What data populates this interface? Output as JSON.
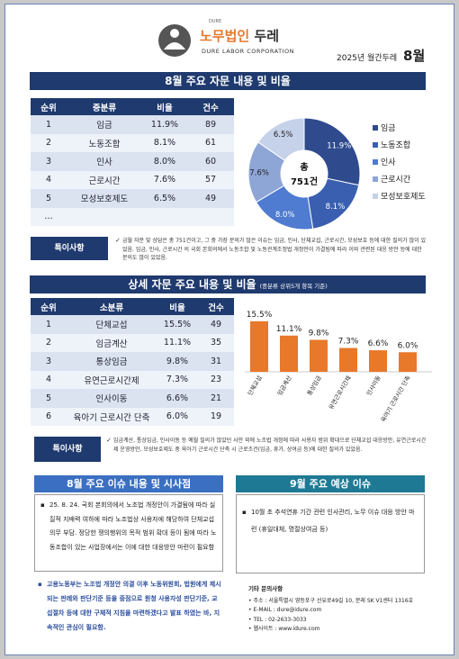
{
  "header": {
    "logo_small": "DURE",
    "logo_name": "노무법인",
    "logo_name_bold": "두레",
    "logo_sub": "DURE LABOR CORPORATION",
    "issue_label": "2025년 월간두레",
    "issue_month": "8월"
  },
  "section1": {
    "title": "8월 주요 자문 내용 및 비율",
    "columns": [
      "순위",
      "중분류",
      "비율",
      "건수"
    ],
    "rows": [
      {
        "rank": "1",
        "category": "임금",
        "ratio": "11.9%",
        "count": "89"
      },
      {
        "rank": "2",
        "category": "노동조합",
        "ratio": "8.1%",
        "count": "61"
      },
      {
        "rank": "3",
        "category": "인사",
        "ratio": "8.0%",
        "count": "60"
      },
      {
        "rank": "4",
        "category": "근로시간",
        "ratio": "7.6%",
        "count": "57"
      },
      {
        "rank": "5",
        "category": "모성보호제도",
        "ratio": "6.5%",
        "count": "49"
      }
    ],
    "ellipsis": "…",
    "donut_center_top": "총",
    "donut_center_bottom": "751건",
    "note_label": "특이사항",
    "note_text": "금월 자문 및 상담은 총 751건이고, 그 중 가장 문의가 많은 이슈는 임금, 인사, 단체교섭, 근로시간, 모성보호 등에 대한 질의가 많이 있었음. 임금, 인사, 근로시간 의 국회 본회의에서 노동조합 및 노동관계조정법 개정안이 가결됨에 따라 이와 관련된 대응 방안 등에 대한 문의도 많이 있었음."
  },
  "section2": {
    "title": "상세 자문 주요 내용 및 비율",
    "title_sub": "(중분류 상위5개 항목 기준)",
    "columns": [
      "순위",
      "소분류",
      "비율",
      "건수"
    ],
    "rows": [
      {
        "rank": "1",
        "category": "단체교섭",
        "ratio": "15.5%",
        "count": "49"
      },
      {
        "rank": "2",
        "category": "임금계산",
        "ratio": "11.1%",
        "count": "35"
      },
      {
        "rank": "3",
        "category": "통상임금",
        "ratio": "9.8%",
        "count": "31"
      },
      {
        "rank": "4",
        "category": "유연근로시간제",
        "ratio": "7.3%",
        "count": "23"
      },
      {
        "rank": "5",
        "category": "인사이동",
        "ratio": "6.6%",
        "count": "21"
      },
      {
        "rank": "6",
        "category": "육아기 근로시간 단축",
        "ratio": "6.0%",
        "count": "19"
      }
    ],
    "note_label": "특이사항",
    "note_text": "임금계산, 통상임금, 인사이동 등 예월 질의가 많았던 사안 외에 노조법 개정에 따라 사용자 범위 확대으로 단체교섭 대응방안, 유연근로시간제 운영방안, 모성보호제도 중 육아기 근로시간 단축 시 근로조건(임금, 휴가, 상여금 등)에 대한 질의가 있었음."
  },
  "issues": {
    "title": "8월 주요 이슈 내용 및 시사점",
    "bullet": "25. 8. 24. 국회 본회의에서 노조법 개정안이 가결됨에 따라 실질적 지배력 여하에 따라 노조법상 사용자에 해당하여 단체교섭 의무 부담. 정당한 쟁의행위의 목적 범위 확대 등이 됨에 따라 노동조합이 있는 사업장에서는 이에 대한 대응방안 마련이 필요함",
    "bullet2": "고용노동부는 노조법 개정안 의결 이후 노동위원회, 법원에게 제시되는 판례와 판단기준 등을 중점으로 원청 사용자성 판단기준, 교섭절차 등에 대한 구체적 지침을 마련하겠다고 발표 하였는 바, 지속적인 관심이 필요함."
  },
  "forecast": {
    "title": "9월 주요 예상 이슈",
    "bullet": "10월 초 추석연휴 기간 관련 인사관리, 노무 이슈 대응 방안 마련 (휴일대체, 명절상여금 등)"
  },
  "contact": {
    "title": "기타 문의사항",
    "items": [
      "주소 : 서울특별시 영등포구 선유로49길 10, 문래 SK V1센터 1316호",
      "E-MAIL : dure@idure.com",
      "TEL : 02-2633-3033",
      "웹사이트 : www.idure.com"
    ]
  },
  "pie_data": {
    "type": "pie",
    "series": [
      {
        "name": "임금",
        "value": 11.9,
        "label": "11.9%"
      },
      {
        "name": "노동조합",
        "value": 8.1,
        "label": "8.1%"
      },
      {
        "name": "인사",
        "value": 8.0,
        "label": "8.0%"
      },
      {
        "name": "근로시간",
        "value": 7.6,
        "label": "7.6%"
      },
      {
        "name": "모성보호제도",
        "value": 6.5,
        "label": "6.5%"
      }
    ],
    "colors": [
      "#2f4b8e",
      "#3a5fb0",
      "#4f7bd0",
      "#8ea6d6",
      "#c6d1ea"
    ]
  },
  "chart_data": {
    "type": "bar",
    "categories": [
      "단체교섭",
      "임금계산",
      "통상임금",
      "유연근로시간제",
      "인사이동",
      "육아기 근로시간 단축"
    ],
    "values": [
      15.5,
      11.1,
      9.8,
      7.3,
      6.6,
      6.0
    ],
    "labels": [
      "15.5%",
      "11.1%",
      "9.8%",
      "7.3%",
      "6.6%",
      "6.0%"
    ],
    "title": "",
    "xlabel": "",
    "ylabel": "",
    "ylim": [
      0,
      16
    ],
    "bar_color": "#e8782a"
  }
}
